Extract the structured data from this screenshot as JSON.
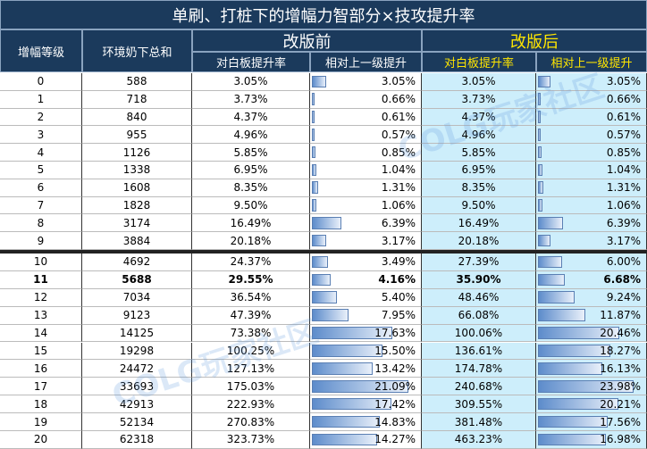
{
  "title": "单刷、打桩下的增幅力智部分×技攻提升率",
  "header": {
    "level": "增幅等级",
    "total": "环境奶下总和",
    "before": "改版前",
    "after": "改版后",
    "sub": [
      "对白板提升率",
      "相对上一级提升",
      "对白板提升率",
      "相对上一级提升"
    ]
  },
  "watermark": "COLG玩家社区",
  "table": {
    "groups": [
      {
        "rows": [
          {
            "cells": [
              "0",
              "588",
              "3.05%",
              {
                "value": 3.05,
                "label": "3.05%"
              },
              "3.05%",
              {
                "value": 3.05,
                "label": "3.05%"
              }
            ]
          },
          {
            "cells": [
              "1",
              "718",
              "3.73%",
              {
                "value": 0.66,
                "label": "0.66%"
              },
              "3.73%",
              {
                "value": 0.66,
                "label": "0.66%"
              }
            ]
          },
          {
            "cells": [
              "2",
              "840",
              "4.37%",
              {
                "value": 0.61,
                "label": "0.61%"
              },
              "4.37%",
              {
                "value": 0.61,
                "label": "0.61%"
              }
            ]
          },
          {
            "cells": [
              "3",
              "955",
              "4.96%",
              {
                "value": 0.57,
                "label": "0.57%"
              },
              "4.96%",
              {
                "value": 0.57,
                "label": "0.57%"
              }
            ]
          },
          {
            "cells": [
              "4",
              "1126",
              "5.85%",
              {
                "value": 0.85,
                "label": "0.85%"
              },
              "5.85%",
              {
                "value": 0.85,
                "label": "0.85%"
              }
            ]
          },
          {
            "cells": [
              "5",
              "1338",
              "6.95%",
              {
                "value": 1.04,
                "label": "1.04%"
              },
              "6.95%",
              {
                "value": 1.04,
                "label": "1.04%"
              }
            ]
          },
          {
            "cells": [
              "6",
              "1608",
              "8.35%",
              {
                "value": 1.31,
                "label": "1.31%"
              },
              "8.35%",
              {
                "value": 1.31,
                "label": "1.31%"
              }
            ]
          },
          {
            "cells": [
              "7",
              "1828",
              "9.50%",
              {
                "value": 1.06,
                "label": "1.06%"
              },
              "9.50%",
              {
                "value": 1.06,
                "label": "1.06%"
              }
            ]
          },
          {
            "cells": [
              "8",
              "3174",
              "16.49%",
              {
                "value": 6.39,
                "label": "6.39%"
              },
              "16.49%",
              {
                "value": 6.39,
                "label": "6.39%"
              }
            ]
          },
          {
            "cells": [
              "9",
              "3884",
              "20.18%",
              {
                "value": 3.17,
                "label": "3.17%"
              },
              "20.18%",
              {
                "value": 3.17,
                "label": "3.17%"
              }
            ]
          }
        ]
      },
      {
        "rows": [
          {
            "cells": [
              "10",
              "4692",
              "24.37%",
              {
                "value": 3.49,
                "label": "3.49%"
              },
              "27.39%",
              {
                "value": 6.0,
                "label": "6.00%"
              }
            ]
          },
          {
            "bold": true,
            "cells": [
              "11",
              "5688",
              "29.55%",
              {
                "value": 4.16,
                "label": "4.16%"
              },
              "35.90%",
              {
                "value": 6.68,
                "label": "6.68%"
              }
            ]
          },
          {
            "cells": [
              "12",
              "7034",
              "36.54%",
              {
                "value": 5.4,
                "label": "5.40%"
              },
              "48.46%",
              {
                "value": 9.24,
                "label": "9.24%"
              }
            ]
          },
          {
            "cells": [
              "13",
              "9123",
              "47.39%",
              {
                "value": 7.95,
                "label": "7.95%"
              },
              "66.08%",
              {
                "value": 11.87,
                "label": "11.87%"
              }
            ]
          },
          {
            "cells": [
              "14",
              "14125",
              "73.38%",
              {
                "value": 17.63,
                "label": "17.63%"
              },
              "100.06%",
              {
                "value": 20.46,
                "label": "20.46%"
              }
            ]
          },
          {
            "cells": [
              "15",
              "19298",
              "100.25%",
              {
                "value": 15.5,
                "label": "15.50%"
              },
              "136.61%",
              {
                "value": 18.27,
                "label": "18.27%"
              }
            ]
          },
          {
            "cells": [
              "16",
              "24472",
              "127.13%",
              {
                "value": 13.42,
                "label": "13.42%"
              },
              "174.78%",
              {
                "value": 16.13,
                "label": "16.13%"
              }
            ]
          },
          {
            "cells": [
              "17",
              "33693",
              "175.03%",
              {
                "value": 21.09,
                "label": "21.09%"
              },
              "240.68%",
              {
                "value": 23.98,
                "label": "23.98%"
              }
            ]
          },
          {
            "cells": [
              "18",
              "42913",
              "222.93%",
              {
                "value": 17.42,
                "label": "17.42%"
              },
              "309.55%",
              {
                "value": 20.21,
                "label": "20.21%"
              }
            ]
          },
          {
            "cells": [
              "19",
              "52134",
              "270.83%",
              {
                "value": 14.83,
                "label": "14.83%"
              },
              "381.48%",
              {
                "value": 17.56,
                "label": "17.56%"
              }
            ]
          },
          {
            "cells": [
              "20",
              "62318",
              "323.73%",
              {
                "value": 14.27,
                "label": "14.27%"
              },
              "463.23%",
              {
                "value": 16.98,
                "label": "16.98%"
              }
            ]
          }
        ]
      }
    ]
  }
}
